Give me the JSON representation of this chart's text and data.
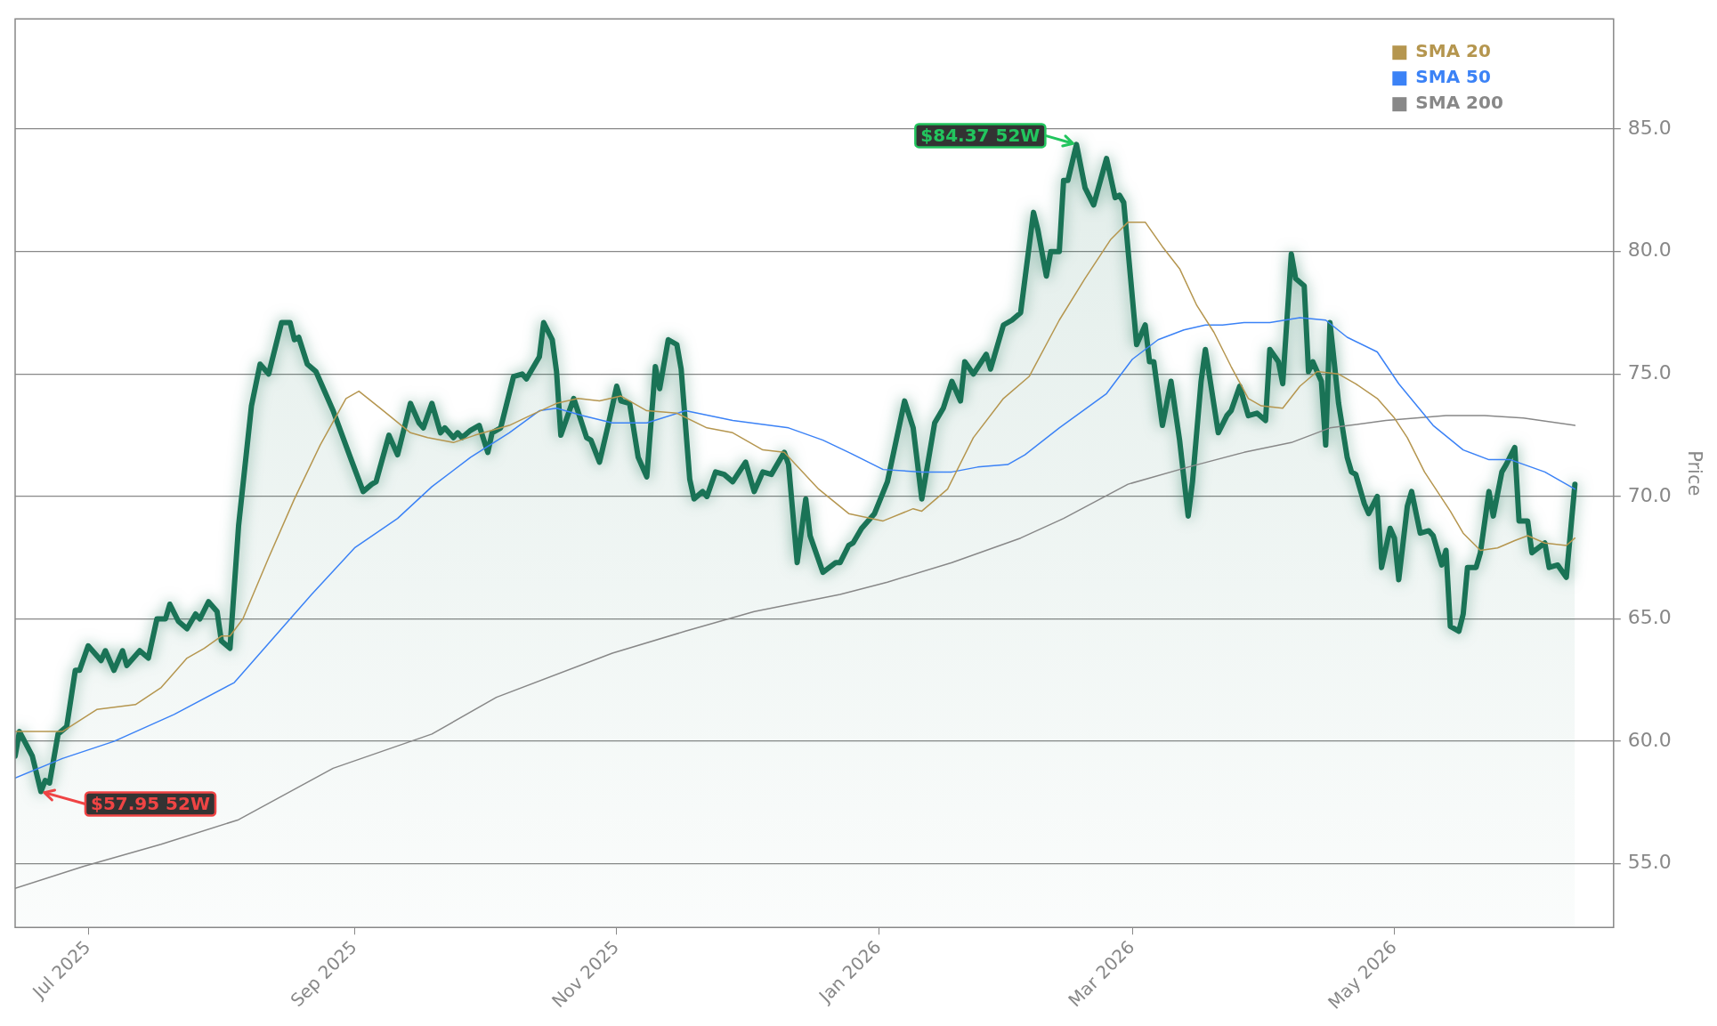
{
  "chart_data": {
    "type": "line",
    "ylabel": "Price",
    "xlim": [
      "2025-06-14",
      "2026-06-21"
    ],
    "xticks": [
      {
        "value": "2025-07-01",
        "label": "Jul 2025"
      },
      {
        "value": "2025-09-01",
        "label": "Sep 2025"
      },
      {
        "value": "2025-11-01",
        "label": "Nov 2025"
      },
      {
        "value": "2026-01-01",
        "label": "Jan 2026"
      },
      {
        "value": "2026-03-01",
        "label": "Mar 2026"
      },
      {
        "value": "2026-05-01",
        "label": "May 2026"
      }
    ],
    "ylim": [
      52.4,
      89.5
    ],
    "yticks": [
      {
        "value": 55,
        "label": "55.0"
      },
      {
        "value": 60,
        "label": "60.0"
      },
      {
        "value": 65,
        "label": "65.0"
      },
      {
        "value": 70,
        "label": "70.0"
      },
      {
        "value": 75,
        "label": "75.0"
      },
      {
        "value": 80,
        "label": "80.0"
      },
      {
        "value": 85,
        "label": "85.0"
      }
    ],
    "grid": "y",
    "legend": "top right",
    "annotations": [
      {
        "text": "$84.37 52W",
        "x": "2026-02-16",
        "y": 84.37
      },
      {
        "text": "$57.95 52W",
        "x": "2025-06-20",
        "y": 57.95
      }
    ],
    "series": [
      {
        "type": "area",
        "color": "#1a7356",
        "x": [
          "2025-06-14",
          "2025-06-15",
          "2025-06-18",
          "2025-06-20",
          "2025-06-21",
          "2025-06-22",
          "2025-06-24",
          "2025-06-26",
          "2025-06-28",
          "2025-06-29",
          "2025-07-01",
          "2025-07-04",
          "2025-07-05",
          "2025-07-07",
          "2025-07-09",
          "2025-07-10",
          "2025-07-13",
          "2025-07-15",
          "2025-07-17",
          "2025-07-19",
          "2025-07-20",
          "2025-07-22",
          "2025-07-24",
          "2025-07-26",
          "2025-07-27",
          "2025-07-29",
          "2025-07-31",
          "2025-08-01",
          "2025-08-03",
          "2025-08-05",
          "2025-08-08",
          "2025-08-10",
          "2025-08-12",
          "2025-08-15",
          "2025-08-17",
          "2025-08-18",
          "2025-08-19",
          "2025-08-21",
          "2025-08-23",
          "2025-08-27",
          "2025-08-31",
          "2025-09-03",
          "2025-09-05",
          "2025-09-06",
          "2025-09-09",
          "2025-09-11",
          "2025-09-14",
          "2025-09-16",
          "2025-09-17",
          "2025-09-19",
          "2025-09-21",
          "2025-09-22",
          "2025-09-24",
          "2025-09-25",
          "2025-09-26",
          "2025-09-28",
          "2025-09-30",
          "2025-10-02",
          "2025-10-03",
          "2025-10-05",
          "2025-10-08",
          "2025-10-10",
          "2025-10-11",
          "2025-10-13",
          "2025-10-14",
          "2025-10-15",
          "2025-10-17",
          "2025-10-18",
          "2025-10-19",
          "2025-10-22",
          "2025-10-25",
          "2025-10-26",
          "2025-10-28",
          "2025-10-30",
          "2025-11-01",
          "2025-11-02",
          "2025-11-04",
          "2025-11-06",
          "2025-11-08",
          "2025-11-10",
          "2025-11-11",
          "2025-11-13",
          "2025-11-15",
          "2025-11-16",
          "2025-11-18",
          "2025-11-19",
          "2025-11-21",
          "2025-11-22",
          "2025-11-24",
          "2025-11-26",
          "2025-11-28",
          "2025-12-01",
          "2025-12-03",
          "2025-12-05",
          "2025-12-07",
          "2025-12-10",
          "2025-12-11",
          "2025-12-13",
          "2025-12-15",
          "2025-12-16",
          "2025-12-19",
          "2025-12-22",
          "2025-12-23",
          "2025-12-25",
          "2025-12-26",
          "2025-12-28",
          "2025-12-31",
          "2026-01-03",
          "2026-01-07",
          "2026-01-09",
          "2026-01-11",
          "2026-01-14",
          "2026-01-16",
          "2026-01-18",
          "2026-01-20",
          "2026-01-21",
          "2026-01-23",
          "2026-01-26",
          "2026-01-27",
          "2026-01-30",
          "2026-02-01",
          "2026-02-03",
          "2026-02-06",
          "2026-02-07",
          "2026-02-09",
          "2026-02-10",
          "2026-02-12",
          "2026-02-13",
          "2026-02-14",
          "2026-02-16",
          "2026-02-18",
          "2026-02-20",
          "2026-02-23",
          "2026-02-25",
          "2026-02-26",
          "2026-02-27",
          "2026-03-02",
          "2026-03-04",
          "2026-03-05",
          "2026-03-06",
          "2026-03-08",
          "2026-03-10",
          "2026-03-12",
          "2026-03-14",
          "2026-03-15",
          "2026-03-17",
          "2026-03-18",
          "2026-03-21",
          "2026-03-23",
          "2026-03-24",
          "2026-03-26",
          "2026-03-28",
          "2026-03-30",
          "2026-04-01",
          "2026-04-02",
          "2026-04-04",
          "2026-04-05",
          "2026-04-07",
          "2026-04-08",
          "2026-04-10",
          "2026-04-11",
          "2026-04-12",
          "2026-04-14",
          "2026-04-15",
          "2026-04-16",
          "2026-04-18",
          "2026-04-20",
          "2026-04-21",
          "2026-04-22",
          "2026-04-24",
          "2026-04-25",
          "2026-04-27",
          "2026-04-28",
          "2026-04-30",
          "2026-05-01",
          "2026-05-02",
          "2026-05-04",
          "2026-05-05",
          "2026-05-07",
          "2026-05-09",
          "2026-05-10",
          "2026-05-12",
          "2026-05-13",
          "2026-05-14",
          "2026-05-16",
          "2026-05-17",
          "2026-05-18",
          "2026-05-20",
          "2026-05-21",
          "2026-05-23",
          "2026-05-24",
          "2026-05-26",
          "2026-05-27",
          "2026-05-29",
          "2026-05-30",
          "2026-06-01",
          "2026-06-02",
          "2026-06-05",
          "2026-06-06",
          "2026-06-08",
          "2026-06-10",
          "2026-06-12"
        ],
        "values": [
          59.4,
          60.4,
          59.4,
          57.95,
          58.4,
          58.3,
          60.3,
          60.6,
          62.9,
          62.9,
          63.9,
          63.3,
          63.7,
          62.9,
          63.7,
          63.1,
          63.7,
          63.4,
          65.0,
          65.0,
          65.6,
          64.9,
          64.6,
          65.2,
          65.0,
          65.7,
          65.3,
          64.1,
          63.8,
          68.8,
          73.7,
          75.4,
          75.0,
          77.1,
          77.1,
          76.4,
          76.5,
          75.4,
          75.1,
          73.5,
          71.6,
          70.2,
          70.5,
          70.6,
          72.5,
          71.7,
          73.8,
          73.0,
          72.8,
          73.8,
          72.6,
          72.8,
          72.4,
          72.6,
          72.4,
          72.7,
          72.9,
          71.8,
          72.6,
          72.8,
          74.9,
          75.0,
          74.8,
          75.4,
          75.7,
          77.1,
          76.4,
          75.1,
          72.5,
          74.0,
          72.4,
          72.3,
          71.4,
          72.9,
          74.5,
          73.9,
          73.8,
          71.6,
          70.8,
          75.3,
          74.4,
          76.4,
          76.2,
          75.2,
          70.7,
          69.9,
          70.2,
          70.0,
          71.0,
          70.9,
          70.6,
          71.4,
          70.2,
          71.0,
          70.9,
          71.8,
          71.3,
          67.3,
          69.9,
          68.4,
          66.9,
          67.3,
          67.3,
          68.0,
          68.1,
          68.7,
          69.3,
          70.6,
          73.9,
          72.8,
          69.9,
          73.0,
          73.6,
          74.7,
          73.9,
          75.5,
          75.0,
          75.8,
          75.2,
          77.0,
          77.2,
          77.5,
          81.6,
          80.9,
          79.0,
          80.0,
          80.0,
          82.9,
          82.9,
          84.37,
          82.6,
          81.9,
          83.8,
          82.2,
          82.3,
          82.0,
          76.2,
          77.0,
          75.5,
          75.5,
          72.9,
          74.7,
          72.3,
          69.2,
          70.6,
          74.7,
          76.0,
          72.6,
          73.3,
          73.5,
          74.5,
          73.3,
          73.4,
          73.1,
          76.0,
          75.5,
          74.6,
          79.9,
          78.9,
          78.6,
          75.1,
          75.5,
          74.7,
          72.1,
          77.1,
          73.8,
          71.6,
          71.0,
          70.9,
          69.7,
          69.3,
          70.0,
          67.1,
          68.7,
          68.3,
          66.6,
          69.6,
          70.2,
          68.5,
          68.6,
          68.4,
          67.2,
          67.8,
          64.7,
          64.5,
          65.2,
          67.1,
          67.1,
          67.7,
          70.2,
          69.2,
          71.0,
          71.3,
          72.0,
          69.0,
          69.0,
          67.7,
          68.1,
          67.1,
          67.2,
          66.7,
          70.5
        ]
      },
      {
        "type": "line",
        "name": "SMA 20",
        "color": "#b5964f",
        "x": [
          "2025-06-14",
          "2025-06-25",
          "2025-07-03",
          "2025-07-12",
          "2025-07-18",
          "2025-07-24",
          "2025-07-28",
          "2025-08-01",
          "2025-08-03",
          "2025-08-06",
          "2025-08-12",
          "2025-08-18",
          "2025-08-24",
          "2025-08-30",
          "2025-09-02",
          "2025-09-07",
          "2025-09-14",
          "2025-09-18",
          "2025-09-24",
          "2025-09-29",
          "2025-10-07",
          "2025-10-13",
          "2025-10-18",
          "2025-10-23",
          "2025-10-28",
          "2025-11-02",
          "2025-11-08",
          "2025-11-15",
          "2025-11-22",
          "2025-11-28",
          "2025-12-05",
          "2025-12-10",
          "2025-12-18",
          "2025-12-25",
          "2026-01-02",
          "2026-01-09",
          "2026-01-11",
          "2026-01-17",
          "2026-01-23",
          "2026-01-30",
          "2026-02-05",
          "2026-02-12",
          "2026-02-18",
          "2026-02-24",
          "2026-02-28",
          "2026-03-04",
          "2026-03-08",
          "2026-03-12",
          "2026-03-16",
          "2026-03-20",
          "2026-03-24",
          "2026-03-28",
          "2026-03-31",
          "2026-04-05",
          "2026-04-09",
          "2026-04-13",
          "2026-04-18",
          "2026-04-22",
          "2026-04-27",
          "2026-05-01",
          "2026-05-04",
          "2026-05-08",
          "2026-05-14",
          "2026-05-17",
          "2026-05-21",
          "2026-05-25",
          "2026-05-29",
          "2026-06-01",
          "2026-06-05",
          "2026-06-10",
          "2026-06-12"
        ],
        "values": [
          60.4,
          60.4,
          61.3,
          61.5,
          62.2,
          63.4,
          63.8,
          64.3,
          64.3,
          65.0,
          67.5,
          69.9,
          72.1,
          74.0,
          74.3,
          73.6,
          72.6,
          72.4,
          72.2,
          72.5,
          72.9,
          73.4,
          73.8,
          74.0,
          73.9,
          74.1,
          73.5,
          73.4,
          72.8,
          72.6,
          71.9,
          71.8,
          70.3,
          69.3,
          69.0,
          69.5,
          69.4,
          70.3,
          72.4,
          74.0,
          74.9,
          77.2,
          78.9,
          80.5,
          81.2,
          81.2,
          80.2,
          79.3,
          77.8,
          76.7,
          75.3,
          74.0,
          73.7,
          73.6,
          74.5,
          75.1,
          75.0,
          74.6,
          74.0,
          73.2,
          72.4,
          71.0,
          69.4,
          68.5,
          67.8,
          67.9,
          68.2,
          68.4,
          68.1,
          68.0,
          68.3
        ]
      },
      {
        "type": "line",
        "name": "SMA 50",
        "color": "#3b82f6",
        "x": [
          "2025-06-14",
          "2025-06-25",
          "2025-07-07",
          "2025-07-21",
          "2025-08-04",
          "2025-08-12",
          "2025-08-22",
          "2025-09-01",
          "2025-09-11",
          "2025-09-19",
          "2025-09-28",
          "2025-10-07",
          "2025-10-14",
          "2025-10-18",
          "2025-10-24",
          "2025-10-31",
          "2025-11-08",
          "2025-11-17",
          "2025-11-28",
          "2025-12-11",
          "2025-12-19",
          "2025-12-25",
          "2026-01-02",
          "2026-01-11",
          "2026-01-18",
          "2026-01-24",
          "2026-01-31",
          "2026-02-04",
          "2026-02-12",
          "2026-02-23",
          "2026-03-01",
          "2026-03-07",
          "2026-03-13",
          "2026-03-18",
          "2026-03-22",
          "2026-03-27",
          "2026-04-02",
          "2026-04-09",
          "2026-04-15",
          "2026-04-20",
          "2026-04-27",
          "2026-05-02",
          "2026-05-10",
          "2026-05-17",
          "2026-05-23",
          "2026-05-28",
          "2026-06-05",
          "2026-06-12"
        ],
        "values": [
          58.5,
          59.3,
          60.0,
          61.1,
          62.4,
          64.0,
          66.0,
          67.9,
          69.1,
          70.4,
          71.6,
          72.6,
          73.5,
          73.6,
          73.3,
          73.0,
          73.0,
          73.5,
          73.1,
          72.8,
          72.3,
          71.8,
          71.1,
          71.0,
          71.0,
          71.2,
          71.3,
          71.7,
          72.8,
          74.2,
          75.6,
          76.4,
          76.8,
          77.0,
          77.0,
          77.1,
          77.1,
          77.3,
          77.2,
          76.5,
          75.9,
          74.6,
          72.9,
          71.9,
          71.5,
          71.5,
          71.0,
          70.3
        ]
      },
      {
        "type": "line",
        "name": "SMA 200",
        "color": "#888888",
        "x": [
          "2025-06-14",
          "2025-06-30",
          "2025-07-18",
          "2025-08-05",
          "2025-08-27",
          "2025-09-19",
          "2025-10-04",
          "2025-10-31",
          "2025-11-17",
          "2025-12-03",
          "2025-12-23",
          "2026-01-03",
          "2026-01-18",
          "2026-02-03",
          "2026-02-13",
          "2026-02-28",
          "2026-03-14",
          "2026-03-27",
          "2026-04-07",
          "2026-04-16",
          "2026-04-29",
          "2026-05-13",
          "2026-05-22",
          "2026-05-31",
          "2026-06-12"
        ],
        "values": [
          54.0,
          54.9,
          55.8,
          56.8,
          58.9,
          60.3,
          61.8,
          63.6,
          64.5,
          65.3,
          66.0,
          66.5,
          67.3,
          68.3,
          69.1,
          70.5,
          71.2,
          71.8,
          72.2,
          72.8,
          73.1,
          73.3,
          73.3,
          73.2,
          72.9
        ]
      }
    ]
  }
}
